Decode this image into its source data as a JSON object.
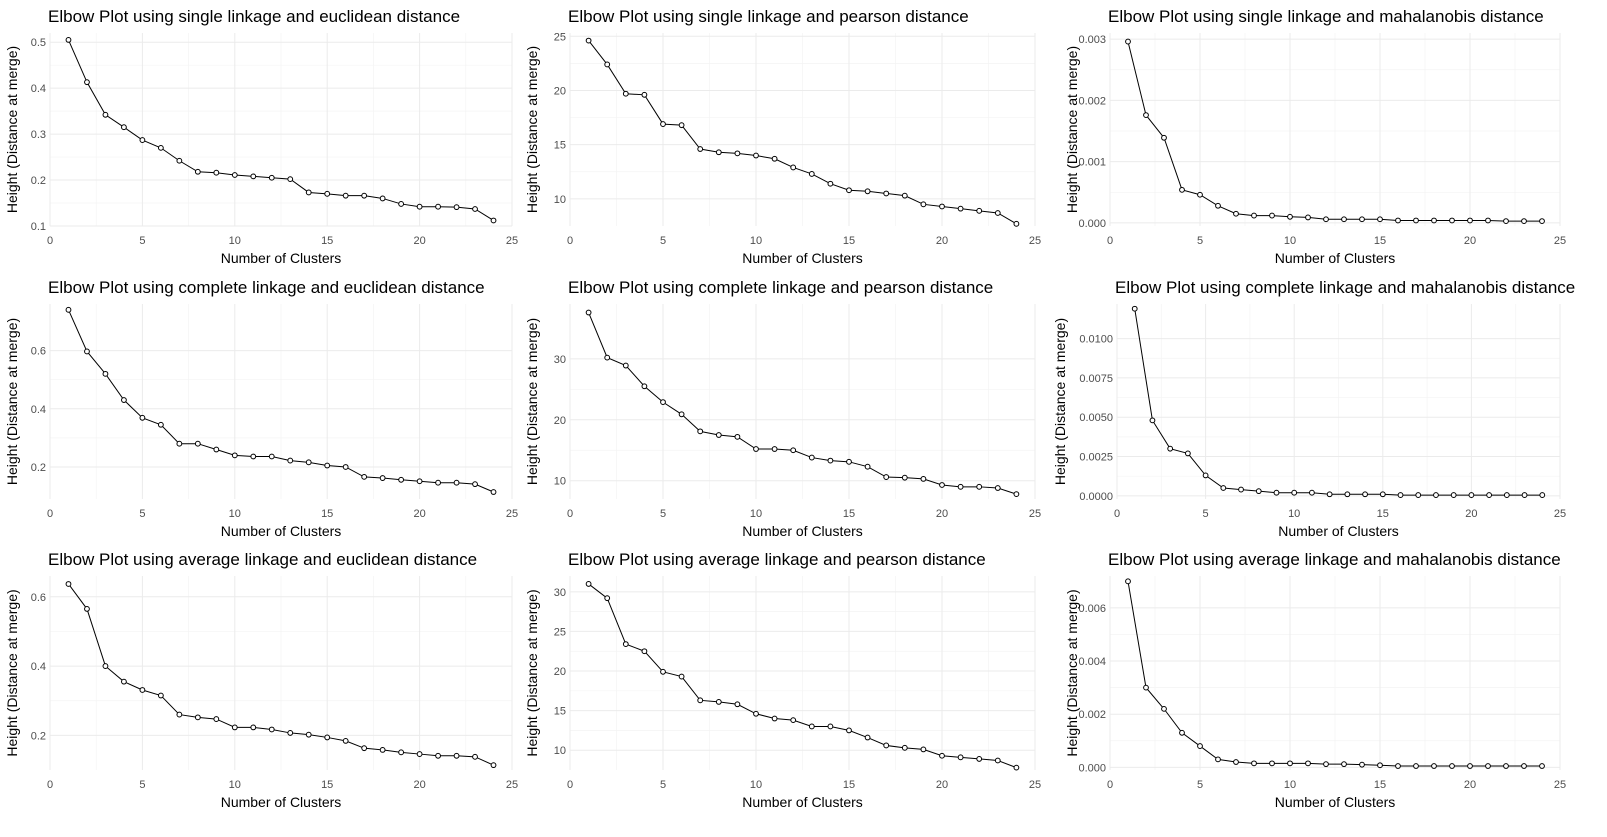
{
  "chart_data": [
    {
      "type": "line",
      "title": "Elbow Plot using single linkage and euclidean distance",
      "xlabel": "Number of Clusters",
      "ylabel": "Height (Distance at merge)",
      "xlim": [
        0,
        25
      ],
      "ylim": [
        0.1,
        0.52
      ],
      "xticks": [
        "0",
        "5",
        "10",
        "15",
        "20",
        "25"
      ],
      "yticks": [
        "0.1",
        "0.2",
        "0.3",
        "0.4",
        "0.5"
      ],
      "x": [
        1,
        2,
        3,
        4,
        5,
        6,
        7,
        8,
        9,
        10,
        11,
        12,
        13,
        14,
        15,
        16,
        17,
        18,
        19,
        20,
        21,
        22,
        23,
        24
      ],
      "values": [
        0.505,
        0.413,
        0.342,
        0.315,
        0.287,
        0.27,
        0.242,
        0.218,
        0.216,
        0.211,
        0.208,
        0.205,
        0.202,
        0.173,
        0.17,
        0.166,
        0.166,
        0.16,
        0.148,
        0.142,
        0.142,
        0.141,
        0.137,
        0.112
      ]
    },
    {
      "type": "line",
      "title": "Elbow Plot using single linkage and pearson distance",
      "xlabel": "Number of Clusters",
      "ylabel": "Height (Distance at merge)",
      "xlim": [
        0,
        25
      ],
      "ylim": [
        7.5,
        25.3
      ],
      "xticks": [
        "0",
        "5",
        "10",
        "15",
        "20",
        "25"
      ],
      "yticks": [
        "10",
        "15",
        "20",
        "25"
      ],
      "x": [
        1,
        2,
        3,
        4,
        5,
        6,
        7,
        8,
        9,
        10,
        11,
        12,
        13,
        14,
        15,
        16,
        17,
        18,
        19,
        20,
        21,
        22,
        23,
        24
      ],
      "values": [
        24.6,
        22.4,
        19.7,
        19.6,
        16.9,
        16.8,
        14.6,
        14.3,
        14.2,
        14.0,
        13.7,
        12.9,
        12.3,
        11.4,
        10.8,
        10.7,
        10.5,
        10.3,
        9.5,
        9.3,
        9.1,
        8.9,
        8.7,
        7.7
      ]
    },
    {
      "type": "line",
      "title": "Elbow Plot using single linkage and mahalanobis distance",
      "xlabel": "Number of Clusters",
      "ylabel": "Height (Distance at merge)",
      "xlim": [
        0,
        25
      ],
      "ylim": [
        -5e-05,
        0.0031
      ],
      "xticks": [
        "0",
        "5",
        "10",
        "15",
        "20",
        "25"
      ],
      "yticks": [
        "0.000",
        "0.001",
        "0.002",
        "0.003"
      ],
      "x": [
        1,
        2,
        3,
        4,
        5,
        6,
        7,
        8,
        9,
        10,
        11,
        12,
        13,
        14,
        15,
        16,
        17,
        18,
        19,
        20,
        21,
        22,
        23,
        24
      ],
      "values": [
        0.00296,
        0.00176,
        0.00139,
        0.00054,
        0.00046,
        0.00028,
        0.00015,
        0.00012,
        0.00012,
        0.0001,
        9e-05,
        6e-05,
        6e-05,
        6e-05,
        6e-05,
        4e-05,
        4e-05,
        4e-05,
        4e-05,
        4e-05,
        4e-05,
        3e-05,
        3e-05,
        3e-05
      ]
    },
    {
      "type": "line",
      "title": "Elbow Plot using complete linkage and euclidean distance",
      "xlabel": "Number of Clusters",
      "ylabel": "Height (Distance at merge)",
      "xlim": [
        0,
        25
      ],
      "ylim": [
        0.09,
        0.76
      ],
      "xticks": [
        "0",
        "5",
        "10",
        "15",
        "20",
        "25"
      ],
      "yticks": [
        "0.2",
        "0.4",
        "0.6"
      ],
      "x": [
        1,
        2,
        3,
        4,
        5,
        6,
        7,
        8,
        9,
        10,
        11,
        12,
        13,
        14,
        15,
        16,
        17,
        18,
        19,
        20,
        21,
        22,
        23,
        24
      ],
      "values": [
        0.74,
        0.597,
        0.52,
        0.43,
        0.369,
        0.345,
        0.28,
        0.28,
        0.26,
        0.24,
        0.236,
        0.236,
        0.222,
        0.216,
        0.205,
        0.2,
        0.166,
        0.162,
        0.156,
        0.151,
        0.146,
        0.146,
        0.141,
        0.114
      ]
    },
    {
      "type": "line",
      "title": "Elbow Plot using complete linkage and pearson distance",
      "xlabel": "Number of Clusters",
      "ylabel": "Height (Distance at merge)",
      "xlim": [
        0,
        25
      ],
      "ylim": [
        7,
        39
      ],
      "xticks": [
        "0",
        "5",
        "10",
        "15",
        "20",
        "25"
      ],
      "yticks": [
        "10",
        "20",
        "30"
      ],
      "x": [
        1,
        2,
        3,
        4,
        5,
        6,
        7,
        8,
        9,
        10,
        11,
        12,
        13,
        14,
        15,
        16,
        17,
        18,
        19,
        20,
        21,
        22,
        23,
        24
      ],
      "values": [
        37.6,
        30.2,
        28.9,
        25.5,
        22.9,
        20.9,
        18.1,
        17.5,
        17.2,
        15.2,
        15.2,
        15.0,
        13.8,
        13.3,
        13.1,
        12.3,
        10.6,
        10.5,
        10.3,
        9.3,
        9.0,
        9.0,
        8.8,
        7.8
      ]
    },
    {
      "type": "line",
      "title": "Elbow Plot using complete linkage and mahalanobis distance",
      "xlabel": "Number of Clusters",
      "ylabel": "Height (Distance at merge)",
      "xlim": [
        0,
        25
      ],
      "ylim": [
        -0.0002,
        0.0122
      ],
      "xticks": [
        "0",
        "5",
        "10",
        "15",
        "20",
        "25"
      ],
      "yticks": [
        "0.0000",
        "0.0025",
        "0.0050",
        "0.0075",
        "0.0100"
      ],
      "x": [
        1,
        2,
        3,
        4,
        5,
        6,
        7,
        8,
        9,
        10,
        11,
        12,
        13,
        14,
        15,
        16,
        17,
        18,
        19,
        20,
        21,
        22,
        23,
        24
      ],
      "values": [
        0.0119,
        0.0048,
        0.003,
        0.0027,
        0.0013,
        0.0005,
        0.0004,
        0.0003,
        0.0002,
        0.0002,
        0.0002,
        0.0001,
        0.0001,
        0.0001,
        0.0001,
        5e-05,
        5e-05,
        5e-05,
        5e-05,
        5e-05,
        5e-05,
        5e-05,
        5e-05,
        5e-05
      ]
    },
    {
      "type": "line",
      "title": "Elbow Plot using average linkage and euclidean distance",
      "xlabel": "Number of Clusters",
      "ylabel": "Height (Distance at merge)",
      "xlim": [
        0,
        25
      ],
      "ylim": [
        0.1,
        0.66
      ],
      "xticks": [
        "0",
        "5",
        "10",
        "15",
        "20",
        "25"
      ],
      "yticks": [
        "0.2",
        "0.4",
        "0.6"
      ],
      "x": [
        1,
        2,
        3,
        4,
        5,
        6,
        7,
        8,
        9,
        10,
        11,
        12,
        13,
        14,
        15,
        16,
        17,
        18,
        19,
        20,
        21,
        22,
        23,
        24
      ],
      "values": [
        0.637,
        0.565,
        0.4,
        0.355,
        0.331,
        0.315,
        0.26,
        0.252,
        0.247,
        0.223,
        0.223,
        0.217,
        0.207,
        0.202,
        0.194,
        0.184,
        0.163,
        0.158,
        0.151,
        0.146,
        0.141,
        0.141,
        0.138,
        0.114
      ]
    },
    {
      "type": "line",
      "title": "Elbow Plot using average linkage and pearson distance",
      "xlabel": "Number of Clusters",
      "ylabel": "Height (Distance at merge)",
      "xlim": [
        0,
        25
      ],
      "ylim": [
        7.5,
        32
      ],
      "xticks": [
        "0",
        "5",
        "10",
        "15",
        "20",
        "25"
      ],
      "yticks": [
        "10",
        "15",
        "20",
        "25",
        "30"
      ],
      "x": [
        1,
        2,
        3,
        4,
        5,
        6,
        7,
        8,
        9,
        10,
        11,
        12,
        13,
        14,
        15,
        16,
        17,
        18,
        19,
        20,
        21,
        22,
        23,
        24
      ],
      "values": [
        31.0,
        29.2,
        23.4,
        22.5,
        19.9,
        19.3,
        16.3,
        16.1,
        15.8,
        14.6,
        14.0,
        13.8,
        13.0,
        13.0,
        12.5,
        11.6,
        10.6,
        10.3,
        10.1,
        9.3,
        9.1,
        8.9,
        8.7,
        7.8
      ]
    },
    {
      "type": "line",
      "title": "Elbow Plot using average linkage and mahalanobis distance",
      "xlabel": "Number of Clusters",
      "ylabel": "Height (Distance at merge)",
      "xlim": [
        0,
        25
      ],
      "ylim": [
        -0.0001,
        0.0072
      ],
      "xticks": [
        "0",
        "5",
        "10",
        "15",
        "20",
        "25"
      ],
      "yticks": [
        "0.000",
        "0.002",
        "0.004",
        "0.006"
      ],
      "x": [
        1,
        2,
        3,
        4,
        5,
        6,
        7,
        8,
        9,
        10,
        11,
        12,
        13,
        14,
        15,
        16,
        17,
        18,
        19,
        20,
        21,
        22,
        23,
        24
      ],
      "values": [
        0.007,
        0.003,
        0.0022,
        0.0013,
        0.0008,
        0.0003,
        0.0002,
        0.00015,
        0.00015,
        0.00015,
        0.00015,
        0.00012,
        0.00012,
        0.0001,
        8e-05,
        5e-05,
        5e-05,
        5e-05,
        5e-05,
        5e-05,
        5e-05,
        5e-05,
        5e-05,
        5e-05
      ]
    }
  ]
}
